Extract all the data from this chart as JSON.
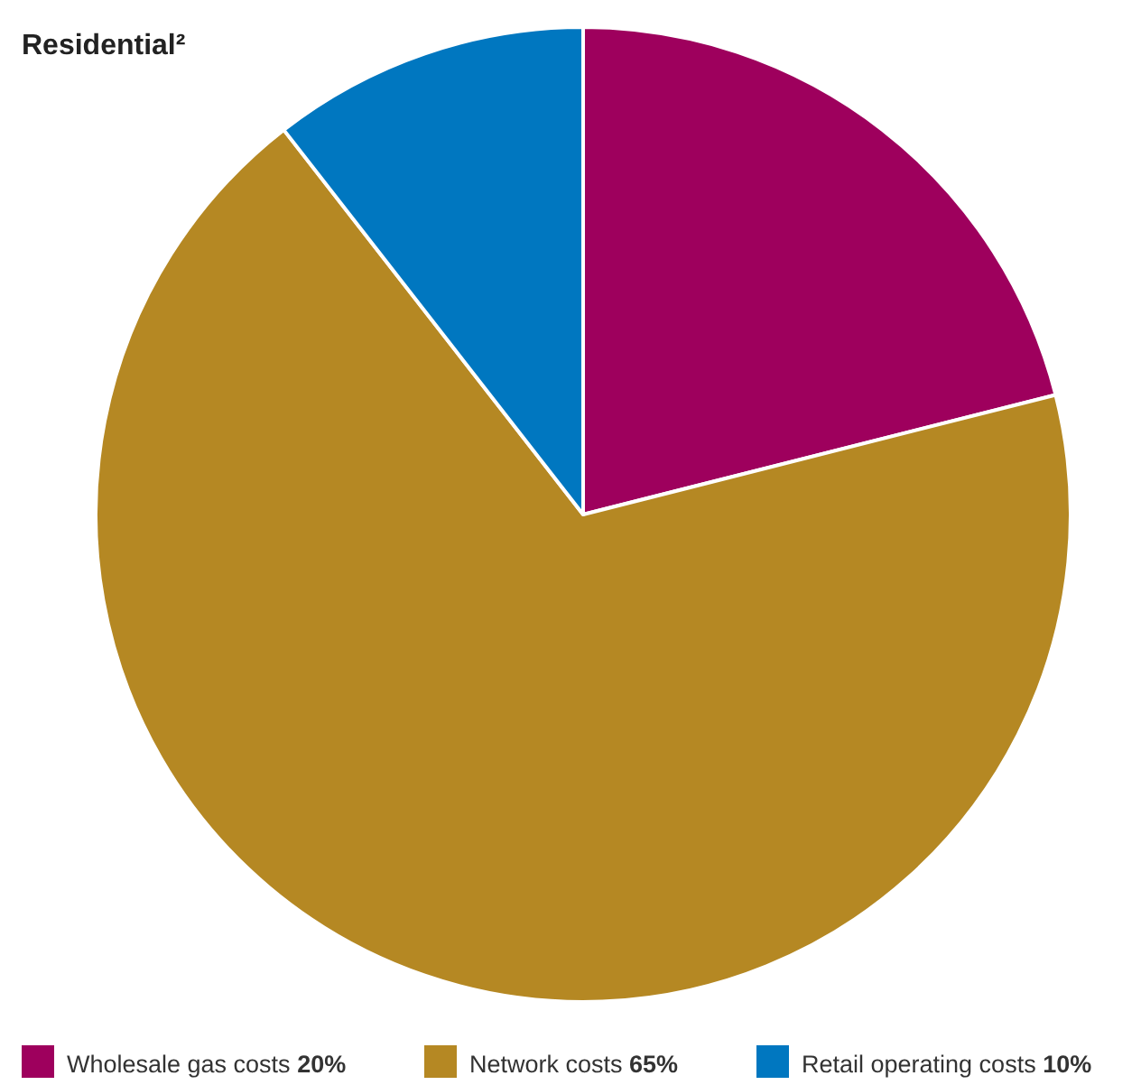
{
  "chart_data": {
    "type": "pie",
    "title": "Residential²",
    "categories": [
      "Wholesale gas costs",
      "Network costs",
      "Retail operating costs"
    ],
    "values": [
      20,
      65,
      10
    ],
    "value_labels": [
      "20%",
      "65%",
      "10%"
    ],
    "colors": [
      "#9e005d",
      "#b58823",
      "#0077c0"
    ],
    "legend": "bottom"
  }
}
